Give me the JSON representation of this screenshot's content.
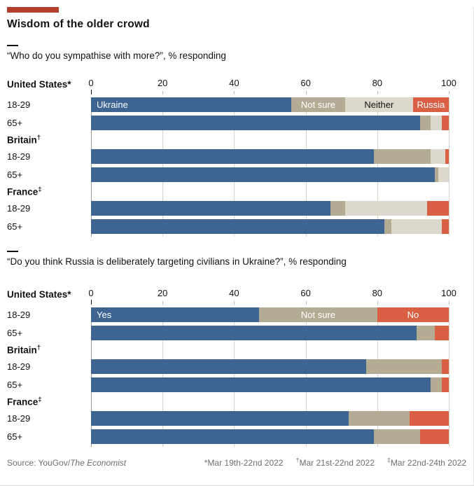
{
  "accent_color": "#b13f2b",
  "title": "Wisdom of the older crowd",
  "chart_data": [
    {
      "type": "bar",
      "stacked": true,
      "orientation": "horizontal",
      "subtitle": "“Who do you sympathise with more?”, % responding",
      "axis": {
        "min": 0,
        "max": 100,
        "ticks": [
          0,
          20,
          40,
          60,
          80,
          100
        ]
      },
      "series": [
        {
          "name": "Ukraine",
          "color": "#3e6491",
          "text_color": "#ffffff",
          "label_align": "left"
        },
        {
          "name": "Not sure",
          "color": "#b3ab94",
          "text_color": "#ffffff",
          "label_align": "center"
        },
        {
          "name": "Neither",
          "color": "#dcd9cc",
          "text_color": "#121212",
          "label_align": "center"
        },
        {
          "name": "Russia",
          "color": "#d95f45",
          "text_color": "#ffffff",
          "label_align": "center"
        }
      ],
      "groups": [
        {
          "label": "United States",
          "marker": "*",
          "marker_superscript": false,
          "rows": [
            {
              "label": "18-29",
              "values": [
                56,
                15,
                19,
                10
              ],
              "show_segment_labels": true
            },
            {
              "label": "65+",
              "values": [
                92,
                3,
                3,
                2
              ]
            }
          ]
        },
        {
          "label": "Britain",
          "marker": "†",
          "marker_superscript": true,
          "rows": [
            {
              "label": "18-29",
              "values": [
                79,
                16,
                4,
                1
              ]
            },
            {
              "label": "65+",
              "values": [
                96,
                1,
                3,
                0
              ]
            }
          ]
        },
        {
          "label": "France",
          "marker": "‡",
          "marker_superscript": true,
          "rows": [
            {
              "label": "18-29",
              "values": [
                67,
                4,
                23,
                6
              ]
            },
            {
              "label": "65+",
              "values": [
                82,
                2,
                14,
                2
              ]
            }
          ]
        }
      ]
    },
    {
      "type": "bar",
      "stacked": true,
      "orientation": "horizontal",
      "subtitle": "“Do you think Russia is deliberately targeting civilians in Ukraine?”, % responding",
      "axis": {
        "min": 0,
        "max": 100,
        "ticks": [
          0,
          20,
          40,
          60,
          80,
          100
        ]
      },
      "series": [
        {
          "name": "Yes",
          "color": "#3e6491",
          "text_color": "#ffffff",
          "label_align": "left"
        },
        {
          "name": "Not sure",
          "color": "#b3ab94",
          "text_color": "#ffffff",
          "label_align": "center"
        },
        {
          "name": "No",
          "color": "#d95f45",
          "text_color": "#ffffff",
          "label_align": "center"
        }
      ],
      "groups": [
        {
          "label": "United States",
          "marker": "*",
          "marker_superscript": false,
          "rows": [
            {
              "label": "18-29",
              "values": [
                47,
                33,
                20
              ],
              "show_segment_labels": true
            },
            {
              "label": "65+",
              "values": [
                91,
                5,
                4
              ]
            }
          ]
        },
        {
          "label": "Britain",
          "marker": "†",
          "marker_superscript": true,
          "rows": [
            {
              "label": "18-29",
              "values": [
                77,
                21,
                2
              ]
            },
            {
              "label": "65+",
              "values": [
                95,
                3,
                2
              ]
            }
          ]
        },
        {
          "label": "France",
          "marker": "‡",
          "marker_superscript": true,
          "rows": [
            {
              "label": "18-29",
              "values": [
                72,
                17,
                11
              ]
            },
            {
              "label": "65+",
              "values": [
                79,
                13,
                8
              ]
            }
          ]
        }
      ]
    }
  ],
  "footer": {
    "source_prefix": "Source: YouGov/",
    "source_publication": "The Economist",
    "notes": [
      {
        "marker": "*",
        "text": "Mar 19th-22nd 2022"
      },
      {
        "marker": "†",
        "text": "Mar 21st-22nd 2022"
      },
      {
        "marker": "‡",
        "text": "Mar 22nd-24th 2022"
      }
    ]
  }
}
